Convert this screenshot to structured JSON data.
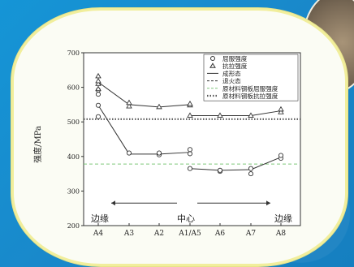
{
  "chart_data": {
    "type": "line",
    "ylabel": "强度/MPa",
    "ylim": [
      200,
      700
    ],
    "yticks": [
      200,
      300,
      400,
      500,
      600,
      700
    ],
    "categories": [
      "A4",
      "A3",
      "A2",
      "A1/A5",
      "A6",
      "A7",
      "A8"
    ],
    "series": [
      {
        "name": "屈服强度",
        "marker": "circle",
        "segments": [
          [
            [
              0,
              515
            ],
            [
              0,
              548
            ],
            [
              0,
              580
            ],
            [
              0,
              592
            ],
            [
              1,
              410
            ],
            [
              2,
              405
            ],
            [
              2,
              410
            ],
            [
              3,
              408
            ],
            [
              3,
              420
            ]
          ],
          [
            [
              3,
              365
            ],
            [
              4,
              357
            ],
            [
              4,
              360
            ],
            [
              5,
              350
            ],
            [
              5,
              365
            ],
            [
              6,
              395
            ],
            [
              6,
              403
            ]
          ]
        ],
        "line_segments": [
          [
            [
              0,
              548
            ],
            [
              1,
              407
            ],
            [
              2,
              407
            ],
            [
              3,
              412
            ]
          ],
          [
            [
              3,
              365
            ],
            [
              4,
              360
            ],
            [
              5,
              362
            ],
            [
              6,
              398
            ]
          ]
        ]
      },
      {
        "name": "抗拉强度",
        "marker": "triangle",
        "points": [
          [
            0,
            595
          ],
          [
            0,
            610
          ],
          [
            0,
            618
          ],
          [
            0,
            632
          ],
          [
            1,
            545
          ],
          [
            1,
            555
          ],
          [
            2,
            543
          ],
          [
            3,
            548
          ],
          [
            3,
            552
          ],
          [
            3,
            518
          ],
          [
            4,
            518
          ],
          [
            5,
            518
          ],
          [
            6,
            528
          ],
          [
            6,
            536
          ]
        ],
        "line_segments": [
          [
            [
              0,
              615
            ],
            [
              1,
              550
            ],
            [
              2,
              543
            ],
            [
              3,
              550
            ]
          ],
          [
            [
              3,
              518
            ],
            [
              4,
              518
            ],
            [
              5,
              518
            ],
            [
              6,
              532
            ]
          ]
        ]
      }
    ],
    "reference_lines": [
      {
        "name": "原材料钢板屈服强度",
        "value": 378,
        "style": "dashed",
        "color": "#7dc67a"
      },
      {
        "name": "原材料钢板抗拉强度",
        "value": 508,
        "style": "dotted",
        "color": "#555555"
      }
    ],
    "legend": {
      "placement": "top-right",
      "entries": [
        "屈服强度",
        "抗拉强度",
        "成形态",
        "退火态",
        "原材料钢板屈服强度",
        "原材料钢板抗拉强度"
      ]
    },
    "annotations": {
      "left": "边缘",
      "center": "中心",
      "right": "边缘"
    }
  },
  "colors": {
    "background": "#1a8fd0",
    "plate": "#fbfcf4",
    "plate_border": "#f1ee9c",
    "series": "#333333"
  }
}
